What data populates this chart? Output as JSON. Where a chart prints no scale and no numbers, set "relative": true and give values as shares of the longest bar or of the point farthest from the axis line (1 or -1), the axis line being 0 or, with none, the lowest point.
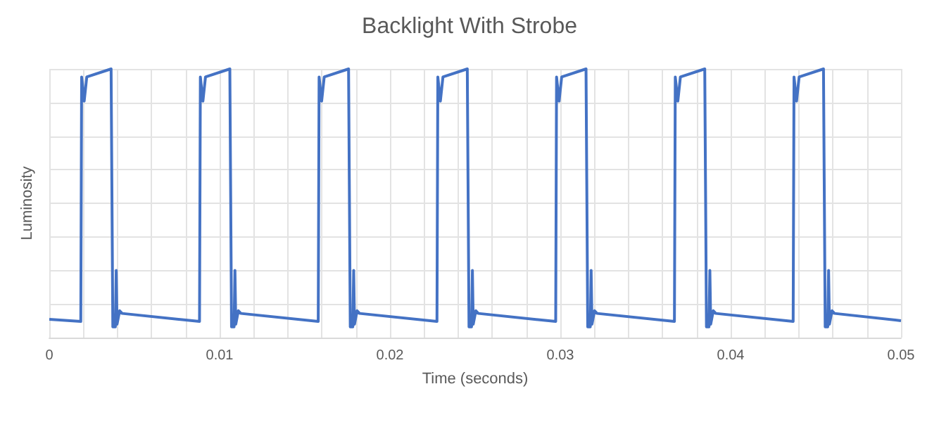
{
  "chart_data": {
    "type": "line",
    "title": "Backlight With Strobe",
    "xlabel": "Time (seconds)",
    "ylabel": "Luminosity",
    "relative": true,
    "grid": true,
    "marker": "none",
    "line_style": "solid",
    "xlim": [
      0,
      0.05
    ],
    "xticks": [
      0,
      {
        "value": 0.002,
        "label": null
      },
      {
        "value": 0.004,
        "label": null
      },
      {
        "value": 0.006,
        "label": null
      },
      {
        "value": 0.008,
        "label": null
      },
      0.01,
      {
        "value": 0.012,
        "label": null
      },
      {
        "value": 0.014,
        "label": null
      },
      {
        "value": 0.016,
        "label": null
      },
      {
        "value": 0.018,
        "label": null
      },
      0.02,
      {
        "value": 0.022,
        "label": null
      },
      {
        "value": 0.024,
        "label": null
      },
      {
        "value": 0.026,
        "label": null
      },
      {
        "value": 0.028,
        "label": null
      },
      0.03,
      {
        "value": 0.032,
        "label": null
      },
      {
        "value": 0.034,
        "label": null
      },
      {
        "value": 0.036,
        "label": null
      },
      {
        "value": 0.038,
        "label": null
      },
      0.04,
      {
        "value": 0.042,
        "label": null
      },
      {
        "value": 0.044,
        "label": null
      },
      {
        "value": 0.046,
        "label": null
      },
      {
        "value": 0.048,
        "label": null
      },
      0.05
    ],
    "series": [
      {
        "color": "#4472c4",
        "x": [
          0,
          0.00185,
          0.0019,
          0.00205,
          0.0022,
          0.00363,
          0.00373,
          0.00388,
          0.00393,
          0.00398,
          0.00413,
          0.00428,
          0.00882,
          0.00887,
          0.00902,
          0.00917,
          0.0106,
          0.0107,
          0.01085,
          0.0109,
          0.01095,
          0.0111,
          0.01125,
          0.01579,
          0.01584,
          0.01599,
          0.01614,
          0.01757,
          0.01767,
          0.01782,
          0.01787,
          0.01792,
          0.01807,
          0.01822,
          0.02276,
          0.02281,
          0.02296,
          0.02311,
          0.02454,
          0.02464,
          0.02479,
          0.02484,
          0.02489,
          0.02504,
          0.02519,
          0.02973,
          0.02978,
          0.02993,
          0.03008,
          0.03151,
          0.03161,
          0.03176,
          0.03181,
          0.03186,
          0.03201,
          0.03216,
          0.0367,
          0.03675,
          0.0369,
          0.03705,
          0.03848,
          0.03858,
          0.03873,
          0.03878,
          0.03883,
          0.03898,
          0.03913,
          0.04367,
          0.04372,
          0.04387,
          0.04402,
          0.04545,
          0.04555,
          0.0457,
          0.04575,
          0.0458,
          0.04595,
          0.0461,
          0.05
        ],
        "values": [
          0.068,
          0.06,
          0.97,
          0.88,
          0.97,
          1,
          0.04,
          0.04,
          0.25,
          0.05,
          0.1,
          0.09,
          0.06,
          0.97,
          0.88,
          0.97,
          1,
          0.04,
          0.04,
          0.25,
          0.05,
          0.1,
          0.09,
          0.06,
          0.97,
          0.88,
          0.97,
          1,
          0.04,
          0.04,
          0.25,
          0.05,
          0.1,
          0.09,
          0.06,
          0.97,
          0.88,
          0.97,
          1,
          0.04,
          0.04,
          0.25,
          0.05,
          0.1,
          0.09,
          0.06,
          0.97,
          0.88,
          0.97,
          1,
          0.04,
          0.04,
          0.25,
          0.05,
          0.1,
          0.09,
          0.06,
          0.97,
          0.88,
          0.97,
          1,
          0.04,
          0.04,
          0.25,
          0.05,
          0.1,
          0.09,
          0.06,
          0.97,
          0.88,
          0.97,
          1,
          0.04,
          0.04,
          0.25,
          0.05,
          0.1,
          0.09,
          0.063
        ]
      }
    ]
  }
}
